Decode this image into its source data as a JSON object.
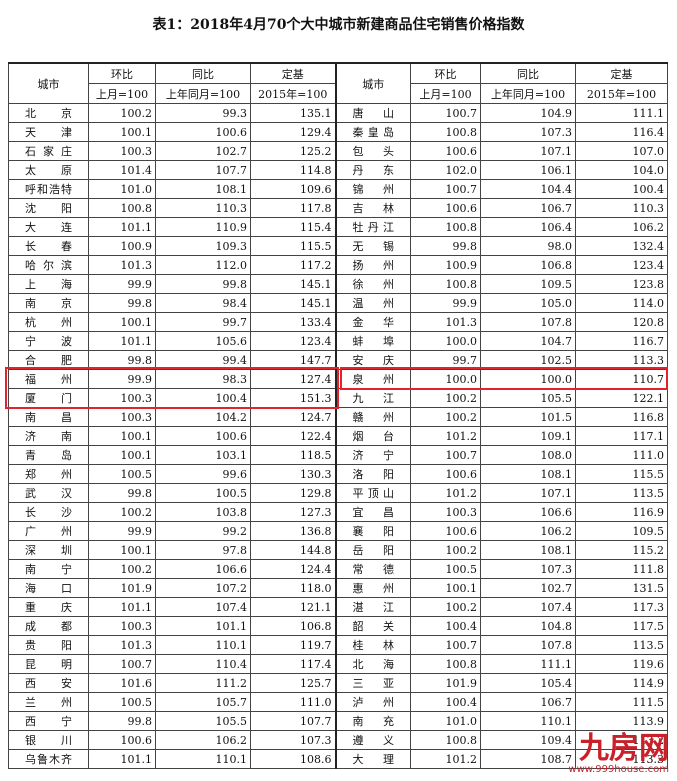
{
  "header": {
    "title": "表1：2018年4月70个大中城市新建商品住宅销售价格指数"
  },
  "table": {
    "city_header": "城市",
    "columns": [
      {
        "name": "环比",
        "base": "上月=100"
      },
      {
        "name": "同比",
        "base": "上年同月=100"
      },
      {
        "name": "定基",
        "base": "2015年=100"
      }
    ],
    "rows": [
      [
        "北京",
        "100.2",
        "99.3",
        "135.1",
        "唐山",
        "100.7",
        "104.9",
        "111.1"
      ],
      [
        "天津",
        "100.1",
        "100.6",
        "129.4",
        "秦皇岛",
        "100.8",
        "107.3",
        "116.4"
      ],
      [
        "石家庄",
        "100.3",
        "102.7",
        "125.2",
        "包头",
        "100.6",
        "107.1",
        "107.0"
      ],
      [
        "太原",
        "101.4",
        "107.7",
        "114.8",
        "丹东",
        "102.0",
        "106.1",
        "104.0"
      ],
      [
        "呼和浩特",
        "101.0",
        "108.1",
        "109.6",
        "锦州",
        "100.7",
        "104.4",
        "100.4"
      ],
      [
        "沈阳",
        "100.8",
        "110.3",
        "117.8",
        "吉林",
        "100.6",
        "106.7",
        "110.3"
      ],
      [
        "大连",
        "101.1",
        "110.9",
        "115.4",
        "牡丹江",
        "100.8",
        "106.4",
        "106.2"
      ],
      [
        "长春",
        "100.9",
        "109.3",
        "115.5",
        "无锡",
        "99.8",
        "98.0",
        "132.4"
      ],
      [
        "哈尔滨",
        "101.3",
        "112.0",
        "117.2",
        "扬州",
        "100.9",
        "106.8",
        "123.4"
      ],
      [
        "上海",
        "99.9",
        "99.8",
        "145.1",
        "徐州",
        "100.8",
        "109.5",
        "123.8"
      ],
      [
        "南京",
        "99.8",
        "98.4",
        "145.1",
        "温州",
        "99.9",
        "105.0",
        "114.0"
      ],
      [
        "杭州",
        "100.1",
        "99.7",
        "133.4",
        "金华",
        "101.3",
        "107.8",
        "120.8"
      ],
      [
        "宁波",
        "101.1",
        "105.6",
        "123.4",
        "蚌埠",
        "100.0",
        "104.7",
        "116.7"
      ],
      [
        "合肥",
        "99.8",
        "99.4",
        "147.7",
        "安庆",
        "99.7",
        "102.5",
        "113.3"
      ],
      [
        "福州",
        "99.9",
        "98.3",
        "127.4",
        "泉州",
        "100.0",
        "100.0",
        "110.7"
      ],
      [
        "厦门",
        "100.3",
        "100.4",
        "151.3",
        "九江",
        "100.2",
        "105.5",
        "122.1"
      ],
      [
        "南昌",
        "100.3",
        "104.2",
        "124.7",
        "赣州",
        "100.2",
        "101.5",
        "116.8"
      ],
      [
        "济南",
        "100.1",
        "100.6",
        "122.4",
        "烟台",
        "101.2",
        "109.1",
        "117.1"
      ],
      [
        "青岛",
        "100.1",
        "103.1",
        "118.5",
        "济宁",
        "100.7",
        "108.0",
        "111.0"
      ],
      [
        "郑州",
        "100.5",
        "99.6",
        "130.3",
        "洛阳",
        "100.6",
        "108.1",
        "115.5"
      ],
      [
        "武汉",
        "99.8",
        "100.5",
        "129.8",
        "平顶山",
        "101.2",
        "107.1",
        "113.5"
      ],
      [
        "长沙",
        "100.2",
        "103.8",
        "127.3",
        "宜昌",
        "100.3",
        "106.6",
        "116.9"
      ],
      [
        "广州",
        "99.9",
        "99.2",
        "136.8",
        "襄阳",
        "100.6",
        "106.2",
        "109.5"
      ],
      [
        "深圳",
        "100.1",
        "97.8",
        "144.8",
        "岳阳",
        "100.2",
        "108.1",
        "115.2"
      ],
      [
        "南宁",
        "100.2",
        "106.6",
        "124.4",
        "常德",
        "100.5",
        "107.3",
        "111.8"
      ],
      [
        "海口",
        "101.9",
        "107.2",
        "118.0",
        "惠州",
        "100.1",
        "102.7",
        "131.5"
      ],
      [
        "重庆",
        "101.1",
        "107.4",
        "121.1",
        "湛江",
        "100.2",
        "107.4",
        "117.3"
      ],
      [
        "成都",
        "100.3",
        "101.1",
        "106.8",
        "韶关",
        "100.4",
        "104.8",
        "117.5"
      ],
      [
        "贵阳",
        "101.3",
        "110.1",
        "119.7",
        "桂林",
        "100.7",
        "107.8",
        "113.5"
      ],
      [
        "昆明",
        "100.7",
        "110.4",
        "117.4",
        "北海",
        "100.8",
        "111.1",
        "119.6"
      ],
      [
        "西安",
        "101.6",
        "111.2",
        "125.7",
        "三亚",
        "101.9",
        "105.4",
        "114.9"
      ],
      [
        "兰州",
        "100.5",
        "105.7",
        "111.0",
        "泸州",
        "100.4",
        "106.7",
        "111.5"
      ],
      [
        "西宁",
        "99.8",
        "105.5",
        "107.7",
        "南充",
        "101.0",
        "110.1",
        "113.9"
      ],
      [
        "银川",
        "100.6",
        "106.2",
        "107.3",
        "遵义",
        "100.8",
        "109.4",
        "113.2"
      ],
      [
        "乌鲁木齐",
        "101.1",
        "110.1",
        "108.6",
        "大理",
        "101.2",
        "108.7",
        "113.3"
      ]
    ]
  },
  "watermark": {
    "brand": "九房网",
    "url": "www.999house.com"
  }
}
